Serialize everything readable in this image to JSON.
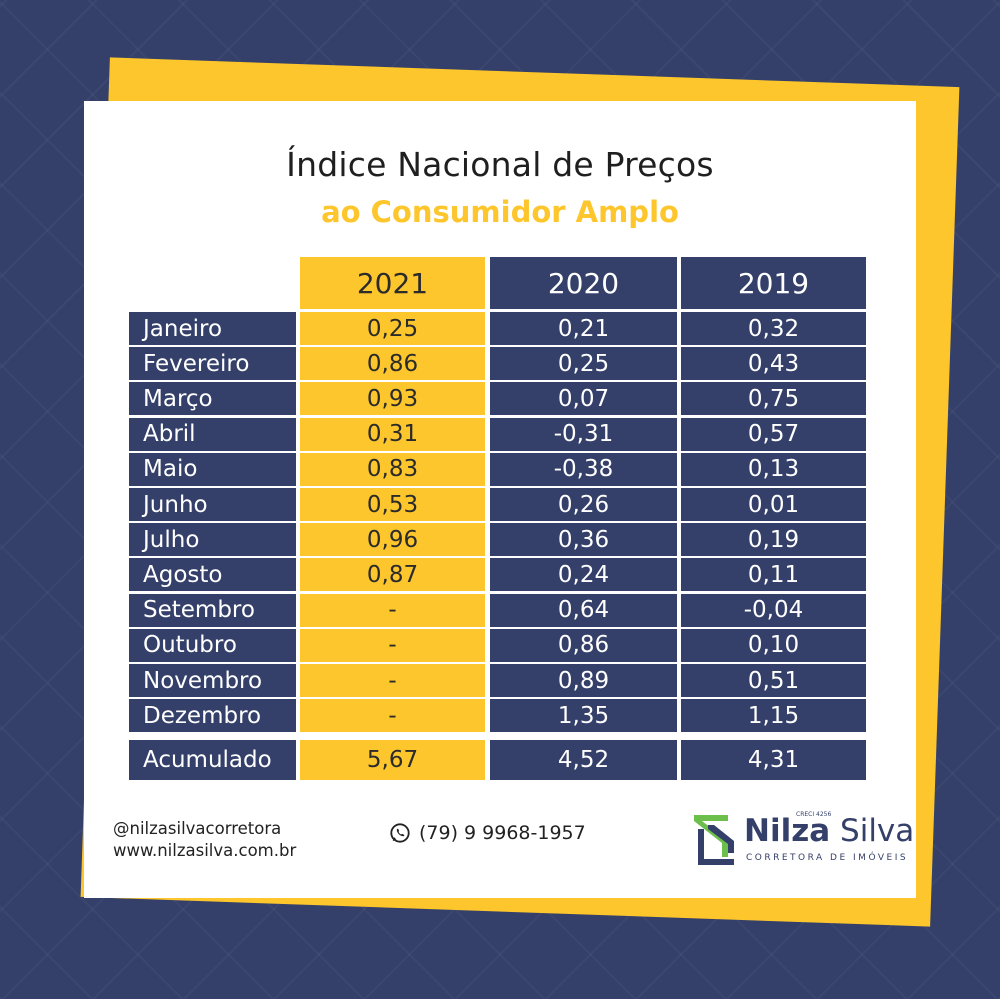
{
  "title_line1": "Índice Nacional de Preços",
  "title_line2": "ao Consumidor Amplo",
  "columns": [
    "2021",
    "2020",
    "2019"
  ],
  "rows": [
    {
      "month": "Janeiro",
      "v2021": "0,25",
      "v2020": "0,21",
      "v2019": "0,32"
    },
    {
      "month": "Fevereiro",
      "v2021": "0,86",
      "v2020": "0,25",
      "v2019": "0,43"
    },
    {
      "month": "Março",
      "v2021": "0,93",
      "v2020": "0,07",
      "v2019": "0,75"
    },
    {
      "month": "Abril",
      "v2021": "0,31",
      "v2020": "-0,31",
      "v2019": "0,57"
    },
    {
      "month": "Maio",
      "v2021": "0,83",
      "v2020": "-0,38",
      "v2019": "0,13"
    },
    {
      "month": "Junho",
      "v2021": "0,53",
      "v2020": "0,26",
      "v2019": "0,01"
    },
    {
      "month": "Julho",
      "v2021": "0,96",
      "v2020": "0,36",
      "v2019": "0,19"
    },
    {
      "month": "Agosto",
      "v2021": "0,87",
      "v2020": "0,24",
      "v2019": "0,11"
    },
    {
      "month": "Setembro",
      "v2021": "-",
      "v2020": "0,64",
      "v2019": "-0,04"
    },
    {
      "month": "Outubro",
      "v2021": "-",
      "v2020": "0,86",
      "v2019": "0,10"
    },
    {
      "month": "Novembro",
      "v2021": "-",
      "v2020": "0,89",
      "v2019": "0,51"
    },
    {
      "month": "Dezembro",
      "v2021": "-",
      "v2020": "1,35",
      "v2019": "1,15"
    }
  ],
  "total": {
    "month": "Acumulado",
    "v2021": "5,67",
    "v2020": "4,52",
    "v2019": "4,31"
  },
  "footer": {
    "instagram": "@nilzasilvacorretora",
    "website": "www.nilzasilva.com.br",
    "phone": "(79) 9 9968-1957",
    "phone_icon": "whatsapp-icon"
  },
  "logo": {
    "name_part1": "Nilza",
    "name_part2": "Silva",
    "subtitle": "CORRETORA DE IMÓVEIS",
    "creci": "CRECI 4256"
  },
  "colors": {
    "navy": "#34406a",
    "yellow": "#fdc62c",
    "logo_green": "#6cbf4b"
  }
}
